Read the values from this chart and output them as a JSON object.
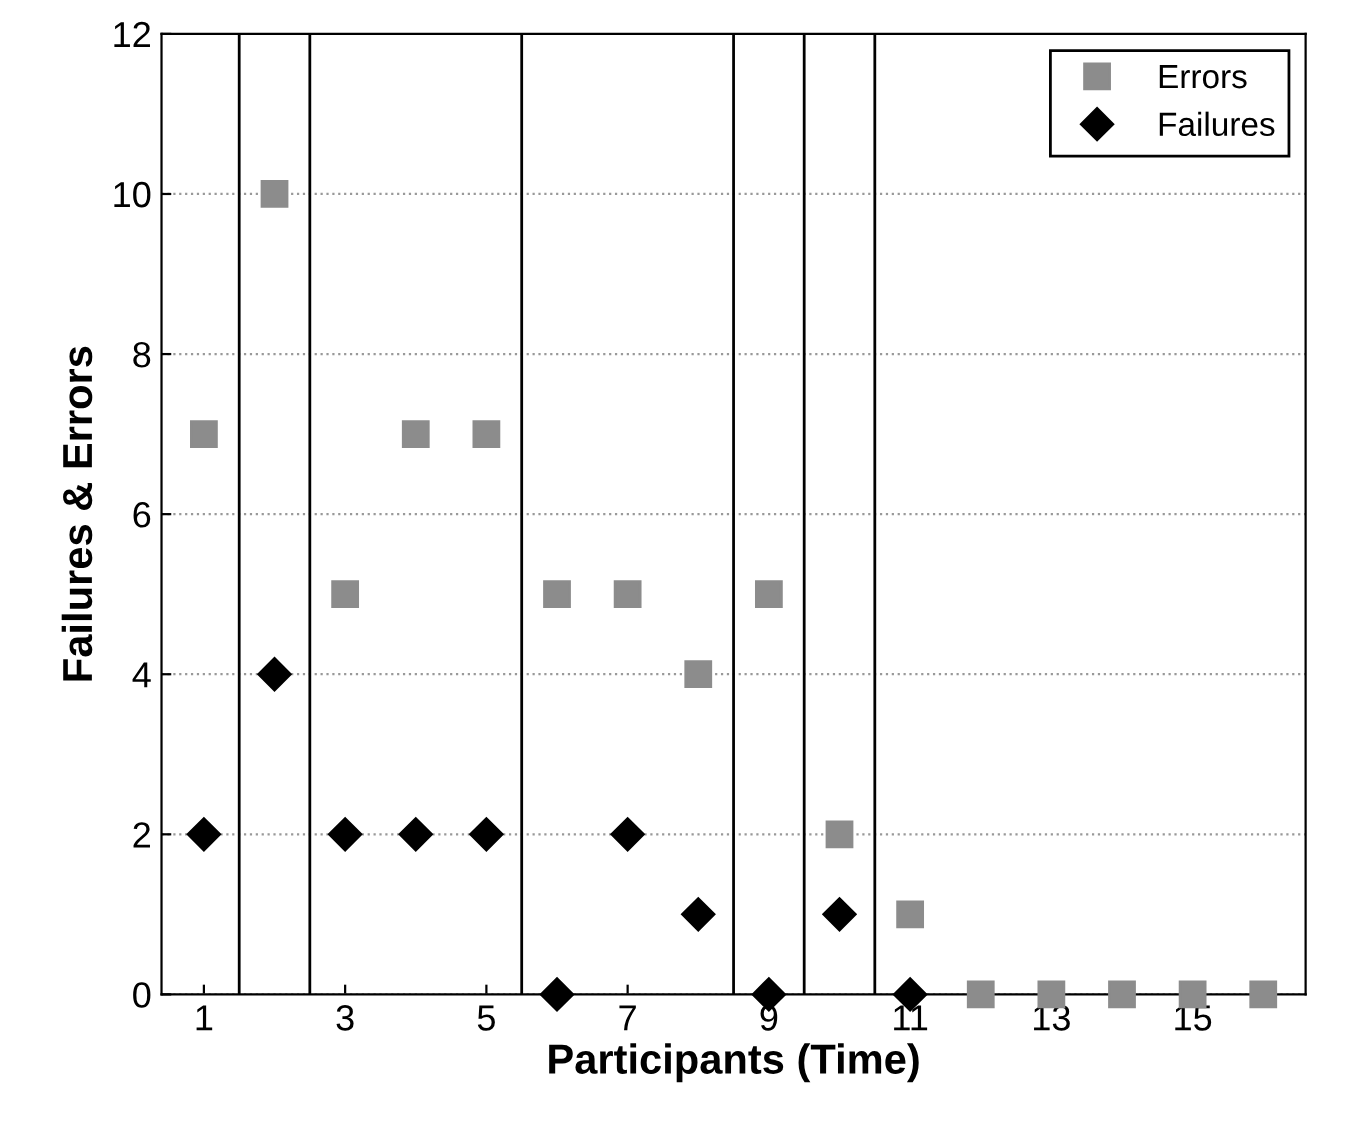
{
  "chart_data": {
    "type": "scatter",
    "xlabel": "Participants (Time)",
    "ylabel": "Failures & Errors",
    "x": [
      1,
      2,
      3,
      4,
      5,
      6,
      7,
      8,
      9,
      10,
      11,
      12,
      13,
      14,
      15,
      16
    ],
    "series": [
      {
        "name": "Errors",
        "color": "#8c8c8c",
        "marker": "square",
        "values": [
          7,
          10,
          5,
          7,
          7,
          5,
          5,
          4,
          5,
          2,
          1,
          0,
          0,
          0,
          0,
          0
        ]
      },
      {
        "name": "Failures",
        "color": "#000000",
        "marker": "diamond",
        "values": [
          2,
          4,
          2,
          2,
          2,
          0,
          2,
          1,
          0,
          1,
          0,
          null,
          null,
          null,
          null,
          null
        ]
      }
    ],
    "xlim": [
      0.4,
      16.6
    ],
    "xticks": [
      1,
      3,
      5,
      7,
      9,
      11,
      13,
      15
    ],
    "ylim": [
      0,
      12
    ],
    "yticks": [
      0,
      2,
      4,
      6,
      8,
      10,
      12
    ],
    "ref_lines": [
      {
        "axis": "x",
        "value": 1.5,
        "color": "#000000"
      },
      {
        "axis": "x",
        "value": 2.5,
        "color": "#000000"
      },
      {
        "axis": "x",
        "value": 5.5,
        "color": "#000000"
      },
      {
        "axis": "x",
        "value": 8.5,
        "color": "#000000"
      },
      {
        "axis": "x",
        "value": 9.5,
        "color": "#000000"
      },
      {
        "axis": "x",
        "value": 10.5,
        "color": "#000000"
      }
    ],
    "grid": "y",
    "legend": "top right"
  }
}
